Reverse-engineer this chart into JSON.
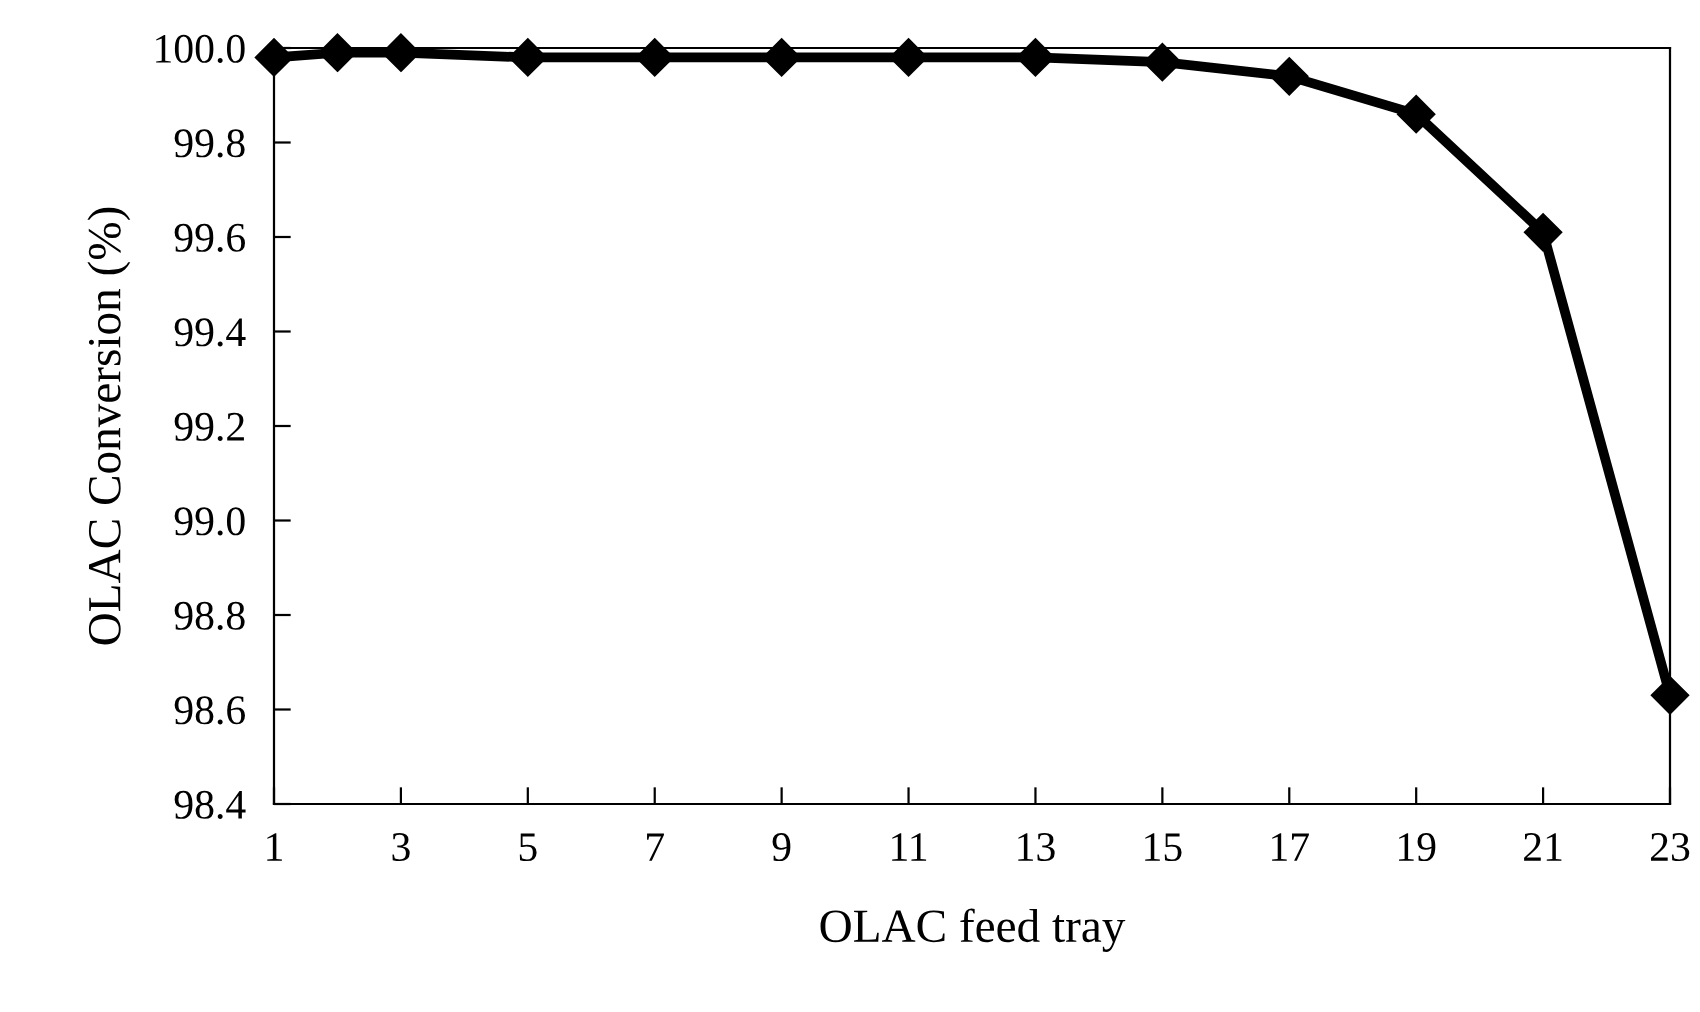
{
  "chart_data": {
    "type": "line",
    "xlabel": "OLAC feed tray",
    "ylabel": "OLAC Conversion (%)",
    "x": [
      1,
      2,
      3,
      5,
      7,
      9,
      11,
      13,
      15,
      17,
      19,
      21,
      23
    ],
    "series": [
      {
        "color": "#000000",
        "values": [
          99.98,
          99.99,
          99.99,
          99.98,
          99.98,
          99.98,
          99.98,
          99.98,
          99.97,
          99.94,
          99.86,
          99.61,
          98.63
        ]
      }
    ],
    "xlim": [
      1,
      23
    ],
    "xticks": [
      1,
      3,
      5,
      7,
      9,
      11,
      13,
      15,
      17,
      19,
      21,
      23
    ],
    "ylim": [
      98.4,
      100.0
    ],
    "yticks": [
      {
        "value": 98.4,
        "label": "98.4"
      },
      {
        "value": 98.6,
        "label": "98.6"
      },
      {
        "value": 98.8,
        "label": "98.8"
      },
      {
        "value": 99.0,
        "label": "99.0"
      },
      {
        "value": 99.2,
        "label": "99.2"
      },
      {
        "value": 99.4,
        "label": "99.4"
      },
      {
        "value": 99.6,
        "label": "99.6"
      },
      {
        "value": 99.8,
        "label": "99.8"
      },
      {
        "value": 100.0,
        "label": "100.0"
      }
    ],
    "grid": false,
    "legend": false,
    "marker": "diamond",
    "line_style": "solid"
  }
}
